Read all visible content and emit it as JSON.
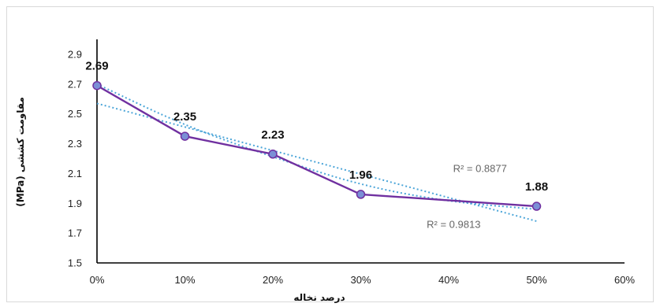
{
  "chart_data": {
    "type": "line",
    "x_tick_labels": [
      "0%",
      "10%",
      "20%",
      "30%",
      "40%",
      "50%",
      "60%"
    ],
    "y_tick_labels": [
      "1.5",
      "1.7",
      "1.9",
      "2.1",
      "2.3",
      "2.5",
      "2.7",
      "2.9"
    ],
    "xlim": [
      0,
      60
    ],
    "ylim": [
      1.5,
      3.0
    ],
    "xlabel": "درصد نخاله",
    "ylabel": "مقاومت کششی (MPa)",
    "grid": false,
    "series": [
      {
        "x": [
          0,
          10,
          20,
          30,
          50
        ],
        "y": [
          2.69,
          2.35,
          2.23,
          1.96,
          1.88
        ],
        "labels": [
          "2.69",
          "2.35",
          "2.23",
          "1.96",
          "1.88"
        ],
        "line_color": "#7030a0",
        "marker_color": "#7b8fd6"
      }
    ],
    "trendlines": [
      {
        "kind": "linear",
        "r2_label": "R² = 0.9813",
        "start": [
          0,
          2.57
        ],
        "end": [
          50,
          1.78
        ],
        "color": "#4da6d9"
      },
      {
        "kind": "curve",
        "r2_label": "R² = 0.8877",
        "points": [
          [
            0,
            2.7
          ],
          [
            10,
            2.42
          ],
          [
            20,
            2.21
          ],
          [
            30,
            2.02
          ],
          [
            40,
            1.91
          ],
          [
            50,
            1.86
          ]
        ],
        "color": "#4da6d9"
      }
    ]
  }
}
